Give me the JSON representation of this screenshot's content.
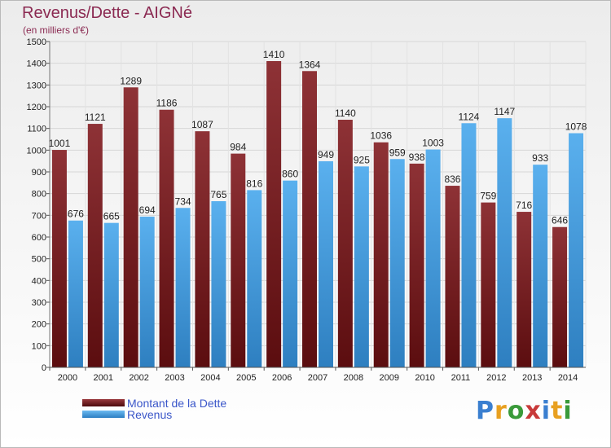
{
  "title": "Revenus/Dette - AIGNé",
  "subtitle": "(en milliers d'€)",
  "colors": {
    "title": "#8b2a52",
    "dette": "#7d2427",
    "revenus": "#4ea3e4",
    "legend_text": "#3a56c9"
  },
  "legend": {
    "items": [
      {
        "label": "Montant de la Dette"
      },
      {
        "label": "Revenus"
      }
    ]
  },
  "logo": {
    "text": "Proxiti",
    "letter_colors": [
      "#3a7fd0",
      "#e8a020",
      "#3a9a3a",
      "#c83a3a",
      "#3a7fd0",
      "#e8a020",
      "#3a9a3a"
    ]
  },
  "chart_data": {
    "type": "bar",
    "title": "Revenus/Dette - AIGNé",
    "subtitle": "(en milliers d'€)",
    "categories": [
      "2000",
      "2001",
      "2002",
      "2003",
      "2004",
      "2005",
      "2006",
      "2007",
      "2008",
      "2009",
      "2010",
      "2011",
      "2012",
      "2013",
      "2014"
    ],
    "series": [
      {
        "name": "Montant de la Dette",
        "values": [
          1001,
          1121,
          1289,
          1186,
          1087,
          984,
          1410,
          1364,
          1140,
          1036,
          938,
          836,
          759,
          716,
          646
        ]
      },
      {
        "name": "Revenus",
        "values": [
          676,
          665,
          694,
          734,
          765,
          816,
          860,
          949,
          925,
          959,
          1003,
          1124,
          1147,
          933,
          1078
        ]
      }
    ],
    "ylim": [
      0,
      1500
    ],
    "yticks": [
      0,
      100,
      200,
      300,
      400,
      500,
      600,
      700,
      800,
      900,
      1000,
      1100,
      1200,
      1300,
      1400,
      1500
    ],
    "grid": true,
    "legend_position": "bottom-left"
  }
}
